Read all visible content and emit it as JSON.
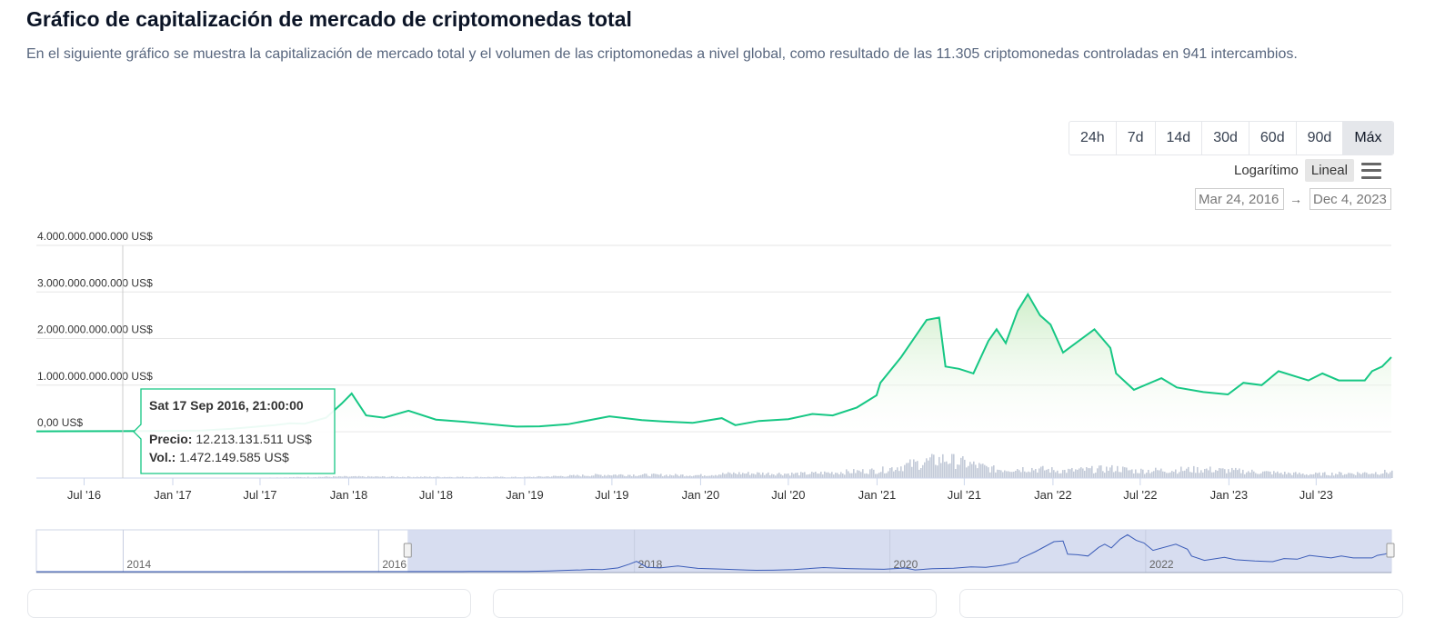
{
  "header": {
    "title": "Gráfico de capitalización de mercado de criptomonedas total",
    "description": "En el siguiente gráfico se muestra la capitalización de mercado total y el volumen de las criptomonedas a nivel global, como resultado de las 11.305 criptomonedas controladas en 941 intercambios."
  },
  "ranges": [
    {
      "label": "24h",
      "active": false
    },
    {
      "label": "7d",
      "active": false
    },
    {
      "label": "14d",
      "active": false
    },
    {
      "label": "30d",
      "active": false
    },
    {
      "label": "60d",
      "active": false
    },
    {
      "label": "90d",
      "active": false
    },
    {
      "label": "Máx",
      "active": true
    }
  ],
  "scale": {
    "log_label": "Logarítimo",
    "linear_label": "Lineal",
    "active": "linear"
  },
  "date_range": {
    "from": "Mar 24, 2016",
    "to": "Dec 4, 2023",
    "arrow": "→"
  },
  "tooltip": {
    "date": "Sat 17 Sep 2016, 21:00:00",
    "price_label": "Precio:",
    "price_value": "12.213.131.511 US$",
    "vol_label": "Vol.:",
    "vol_value": "1.472.149.585 US$"
  },
  "colors": {
    "line": "#16c784",
    "fill_top": "#c9ecc3",
    "volume": "#c3cad8",
    "navigator_line": "#3b5cb8",
    "navigator_mask": "#d3d9ee"
  },
  "chart_data": {
    "type": "line",
    "title": "",
    "series": [
      {
        "name": "Precio",
        "x": [
          "2016-03-24",
          "2016-06-01",
          "2016-09-17",
          "2017-01-01",
          "2017-03-01",
          "2017-05-01",
          "2017-06-15",
          "2017-08-01",
          "2017-09-01",
          "2017-10-01",
          "2017-11-15",
          "2017-12-17",
          "2018-01-07",
          "2018-02-06",
          "2018-03-15",
          "2018-05-05",
          "2018-07-01",
          "2018-09-01",
          "2018-11-20",
          "2018-12-15",
          "2019-02-01",
          "2019-04-01",
          "2019-06-26",
          "2019-09-01",
          "2019-10-15",
          "2019-12-15",
          "2020-02-14",
          "2020-03-13",
          "2020-05-01",
          "2020-07-01",
          "2020-08-20",
          "2020-10-01",
          "2020-11-20",
          "2020-12-31",
          "2021-01-08",
          "2021-02-20",
          "2021-04-14",
          "2021-05-10",
          "2021-05-23",
          "2021-06-20",
          "2021-07-20",
          "2021-08-20",
          "2021-09-06",
          "2021-09-25",
          "2021-10-20",
          "2021-11-10",
          "2021-12-05",
          "2021-12-27",
          "2022-01-22",
          "2022-03-28",
          "2022-04-30",
          "2022-05-12",
          "2022-06-18",
          "2022-08-14",
          "2022-09-15",
          "2022-11-09",
          "2022-12-30",
          "2023-01-31",
          "2023-03-10",
          "2023-04-14",
          "2023-06-15",
          "2023-07-14",
          "2023-08-17",
          "2023-10-10",
          "2023-10-25",
          "2023-11-15",
          "2023-12-04"
        ],
        "y": [
          8000000000,
          10000000000,
          12213131511,
          18000000000,
          25000000000,
          60000000000,
          100000000000,
          140000000000,
          180000000000,
          170000000000,
          300000000000,
          600000000000,
          820000000000,
          350000000000,
          300000000000,
          450000000000,
          260000000000,
          210000000000,
          130000000000,
          110000000000,
          115000000000,
          160000000000,
          330000000000,
          250000000000,
          220000000000,
          190000000000,
          290000000000,
          140000000000,
          230000000000,
          270000000000,
          380000000000,
          350000000000,
          520000000000,
          780000000000,
          1050000000000,
          1600000000000,
          2400000000000,
          2450000000000,
          1400000000000,
          1350000000000,
          1250000000000,
          1950000000000,
          2200000000000,
          1900000000000,
          2600000000000,
          2950000000000,
          2500000000000,
          2300000000000,
          1700000000000,
          2200000000000,
          1800000000000,
          1250000000000,
          900000000000,
          1150000000000,
          950000000000,
          850000000000,
          800000000000,
          1050000000000,
          1000000000000,
          1300000000000,
          1100000000000,
          1250000000000,
          1100000000000,
          1100000000000,
          1300000000000,
          1400000000000,
          1600000000000
        ]
      },
      {
        "name": "Vol.",
        "x": [
          "2016-03-24",
          "2016-09-17",
          "2017-06-01",
          "2017-12-20",
          "2018-06-01",
          "2019-01-01",
          "2019-06-26",
          "2020-01-01",
          "2020-03-13",
          "2020-08-01",
          "2021-01-08",
          "2021-02-20",
          "2021-05-19",
          "2021-09-01",
          "2021-11-10",
          "2022-01-22",
          "2022-05-12",
          "2022-06-18",
          "2022-11-09",
          "2023-03-15",
          "2023-06-15",
          "2023-10-25",
          "2023-12-04"
        ],
        "y": [
          500000000,
          1472149585,
          3000000000,
          30000000000,
          25000000000,
          20000000000,
          70000000000,
          60000000000,
          100000000000,
          90000000000,
          160000000000,
          250000000000,
          400000000000,
          180000000000,
          200000000000,
          150000000000,
          200000000000,
          150000000000,
          180000000000,
          120000000000,
          80000000000,
          110000000000,
          130000000000
        ]
      }
    ],
    "ylabel": "",
    "ylim": [
      0,
      4000000000000
    ],
    "yticks": [
      "0,00 US$",
      "1.000.000.000.000 US$",
      "2.000.000.000.000 US$",
      "3.000.000.000.000 US$",
      "4.000.000.000.000 US$"
    ],
    "xticks": [
      "Jul '16",
      "Jan '17",
      "Jul '17",
      "Jan '18",
      "Jul '18",
      "Jan '19",
      "Jul '19",
      "Jan '20",
      "Jul '20",
      "Jan '21",
      "Jul '21",
      "Jan '22",
      "Jul '22",
      "Jan '23",
      "Jul '23"
    ],
    "xtick_dates": [
      "2016-07-01",
      "2017-01-01",
      "2017-07-01",
      "2018-01-01",
      "2018-07-01",
      "2019-01-01",
      "2019-07-01",
      "2020-01-01",
      "2020-07-01",
      "2021-01-01",
      "2021-07-01",
      "2022-01-01",
      "2022-07-01",
      "2023-01-01",
      "2023-07-01"
    ],
    "navigator_labels": [
      "2014",
      "2016",
      "2018",
      "2020",
      "2022"
    ],
    "navigator_label_dates": [
      "2014-01-01",
      "2016-01-01",
      "2018-01-01",
      "2020-01-01",
      "2022-01-01"
    ],
    "navigator_range": [
      "2013-04-28",
      "2023-12-04"
    ],
    "grid": true,
    "legend": "none"
  }
}
